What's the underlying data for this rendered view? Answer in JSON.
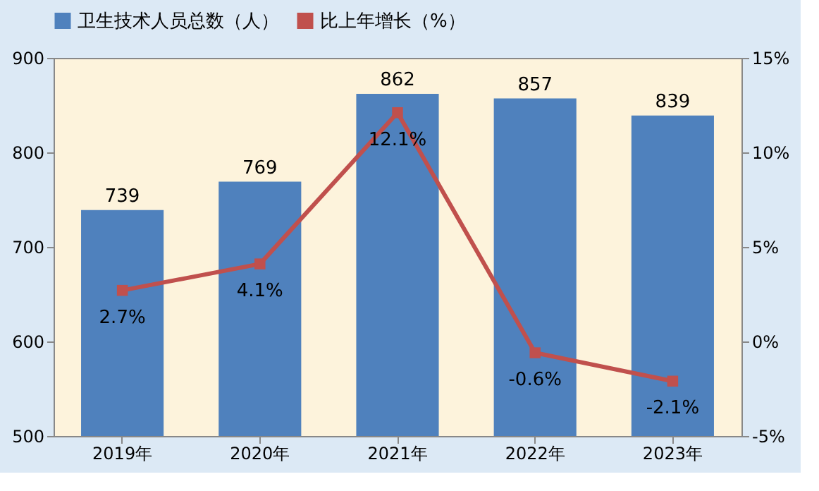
{
  "chart_data": {
    "type": "bar",
    "categories": [
      "2019年",
      "2020年",
      "2021年",
      "2022年",
      "2023年"
    ],
    "series": [
      {
        "name": "卫生技术人员总数（人）",
        "color": "#4f81bd",
        "values": [
          739,
          769,
          862,
          857,
          839
        ],
        "value_labels": [
          "739",
          "769",
          "862",
          "857",
          "839"
        ]
      },
      {
        "name": "比上年增长（%）",
        "color": "#c0504d",
        "type": "line",
        "axis": "y2",
        "marker": "square",
        "values": [
          2.7,
          4.1,
          12.1,
          -0.6,
          -2.1
        ],
        "value_labels": [
          "2.7%",
          "4.1%",
          "12.1%",
          "-0.6%",
          "-2.1%"
        ]
      }
    ],
    "ylim": [
      500,
      900
    ],
    "yticks": [
      500,
      600,
      700,
      800,
      900
    ],
    "y2lim": [
      -5,
      15
    ],
    "y2ticks": [
      {
        "value": -5,
        "label": "-5%"
      },
      {
        "value": 0,
        "label": "0%"
      },
      {
        "value": 5,
        "label": "5%"
      },
      {
        "value": 10,
        "label": "10%"
      },
      {
        "value": 15,
        "label": "15%"
      }
    ],
    "legend": "top",
    "grid": false
  }
}
